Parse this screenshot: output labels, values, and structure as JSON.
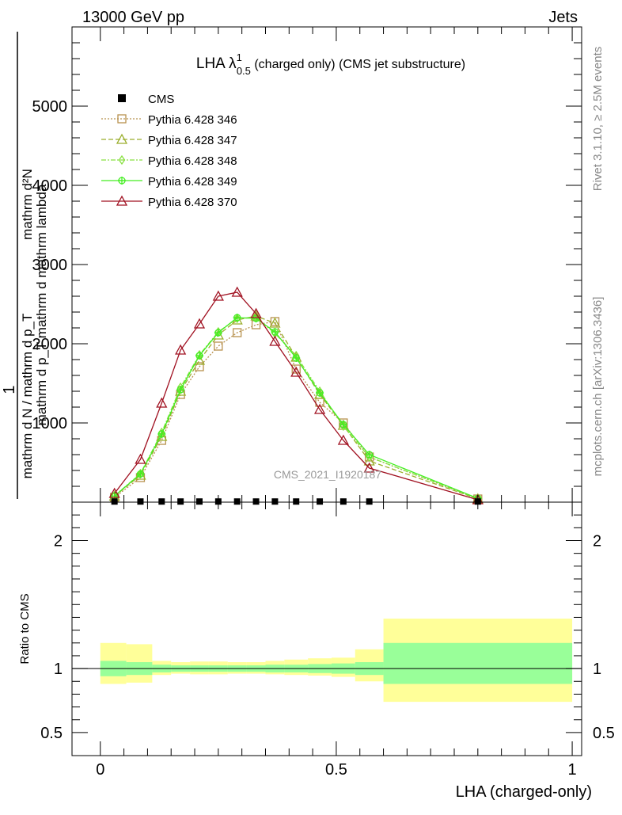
{
  "header": {
    "left": "13000 GeV pp",
    "right": "Jets"
  },
  "side_text": {
    "rivet": "Rivet 3.1.10, ≥ 2.5M events",
    "mcplots": "mcplots.cern.ch [arXiv:1306.3436]"
  },
  "chart_data": [
    {
      "type": "line",
      "title_main": "LHA λ",
      "title_sup": "1",
      "title_sub": "0.5",
      "title_rest": " (charged only) (CMS jet substructure)",
      "ylabel_top": "mathrm d²N",
      "ylabel_mid": "mathrm d p_T mathrm d mathrm lambda",
      "ylabel_one": "1",
      "ylabel_bottom": "mathrm d N / mathrm d p_T",
      "watermark": "CMS_2021_I1920187",
      "xlim": [
        -0.06,
        1.02
      ],
      "ylim": [
        0,
        6000
      ],
      "yticks": [
        {
          "v": 1000,
          "label": "1000"
        },
        {
          "v": 2000,
          "label": "2000"
        },
        {
          "v": 3000,
          "label": "3000"
        },
        {
          "v": 4000,
          "label": "4000"
        },
        {
          "v": 5000,
          "label": "5000"
        }
      ],
      "legend_position": "top-left",
      "legend": [
        {
          "name": "CMS",
          "color": "#000000",
          "marker": "square",
          "dash": ""
        },
        {
          "name": "Pythia 6.428 346",
          "color": "#b8924f",
          "marker": "open-square",
          "dash": "2,2"
        },
        {
          "name": "Pythia 6.428 347",
          "color": "#9aae2c",
          "marker": "open-triangle",
          "dash": "6,3"
        },
        {
          "name": "Pythia 6.428 348",
          "color": "#88e040",
          "marker": "open-diamond",
          "dash": "6,2,2,2"
        },
        {
          "name": "Pythia 6.428 349",
          "color": "#44ee22",
          "marker": "open-circle-cross",
          "dash": ""
        },
        {
          "name": "Pythia 6.428 370",
          "color": "#a01020",
          "marker": "open-triangle",
          "dash": ""
        }
      ],
      "cms_x": [
        0.03,
        0.085,
        0.13,
        0.17,
        0.21,
        0.25,
        0.29,
        0.33,
        0.37,
        0.415,
        0.465,
        0.515,
        0.57,
        0.8
      ],
      "cms_y": [
        8,
        8,
        8,
        8,
        8,
        8,
        8,
        8,
        8,
        8,
        8,
        8,
        8,
        8
      ],
      "series": [
        {
          "name": "Pythia 6.428 346",
          "x": [
            0.03,
            0.085,
            0.13,
            0.17,
            0.21,
            0.25,
            0.29,
            0.33,
            0.37,
            0.415,
            0.465,
            0.515,
            0.57,
            0.8
          ],
          "y": [
            60,
            310,
            780,
            1360,
            1710,
            1970,
            2140,
            2240,
            2280,
            1680,
            1260,
            1000,
            570,
            40
          ]
        },
        {
          "name": "Pythia 6.428 347",
          "x": [
            0.03,
            0.085,
            0.13,
            0.17,
            0.21,
            0.25,
            0.29,
            0.33,
            0.37,
            0.415,
            0.465,
            0.515,
            0.57,
            0.8
          ],
          "y": [
            75,
            340,
            830,
            1400,
            1790,
            2110,
            2300,
            2350,
            2260,
            1830,
            1360,
            970,
            520,
            42
          ]
        },
        {
          "name": "Pythia 6.428 348",
          "x": [
            0.03,
            0.085,
            0.13,
            0.17,
            0.21,
            0.25,
            0.29,
            0.33,
            0.37,
            0.415,
            0.465,
            0.515,
            0.57,
            0.8
          ],
          "y": [
            80,
            360,
            880,
            1450,
            1860,
            2150,
            2320,
            2330,
            2130,
            1850,
            1400,
            960,
            570,
            45
          ]
        },
        {
          "name": "Pythia 6.428 349",
          "x": [
            0.03,
            0.085,
            0.13,
            0.17,
            0.21,
            0.25,
            0.29,
            0.33,
            0.37,
            0.415,
            0.465,
            0.515,
            0.57,
            0.8
          ],
          "y": [
            78,
            355,
            860,
            1420,
            1850,
            2140,
            2330,
            2320,
            2150,
            1820,
            1380,
            980,
            600,
            48
          ]
        },
        {
          "name": "Pythia 6.428 370",
          "x": [
            0.03,
            0.085,
            0.13,
            0.17,
            0.21,
            0.25,
            0.29,
            0.33,
            0.37,
            0.415,
            0.465,
            0.515,
            0.57,
            0.8
          ],
          "y": [
            110,
            540,
            1250,
            1920,
            2250,
            2600,
            2650,
            2380,
            2030,
            1640,
            1170,
            780,
            430,
            30
          ]
        }
      ]
    },
    {
      "type": "area",
      "ylabel": "Ratio to CMS",
      "xlabel": "LHA (charged-only)",
      "xlim": [
        -0.06,
        1.02
      ],
      "ylim": [
        0.32,
        2.3
      ],
      "xticks": [
        {
          "v": 0,
          "label": "0"
        },
        {
          "v": 0.5,
          "label": "0.5"
        },
        {
          "v": 1,
          "label": "1"
        }
      ],
      "yticks": [
        {
          "v": 0.5,
          "label": "0.5"
        },
        {
          "v": 1,
          "label": "1"
        },
        {
          "v": 2,
          "label": "2"
        }
      ],
      "bands": [
        {
          "x0": 0.0,
          "x1": 0.055,
          "stat": [
            0.94,
            1.06
          ],
          "total": [
            0.88,
            1.2
          ]
        },
        {
          "x0": 0.055,
          "x1": 0.11,
          "stat": [
            0.95,
            1.05
          ],
          "total": [
            0.89,
            1.19
          ]
        },
        {
          "x0": 0.11,
          "x1": 0.15,
          "stat": [
            0.97,
            1.03
          ],
          "total": [
            0.95,
            1.06
          ]
        },
        {
          "x0": 0.15,
          "x1": 0.19,
          "stat": [
            0.975,
            1.025
          ],
          "total": [
            0.96,
            1.05
          ]
        },
        {
          "x0": 0.19,
          "x1": 0.23,
          "stat": [
            0.975,
            1.025
          ],
          "total": [
            0.955,
            1.055
          ]
        },
        {
          "x0": 0.23,
          "x1": 0.27,
          "stat": [
            0.975,
            1.025
          ],
          "total": [
            0.955,
            1.055
          ]
        },
        {
          "x0": 0.27,
          "x1": 0.31,
          "stat": [
            0.975,
            1.025
          ],
          "total": [
            0.96,
            1.05
          ]
        },
        {
          "x0": 0.31,
          "x1": 0.35,
          "stat": [
            0.975,
            1.025
          ],
          "total": [
            0.96,
            1.05
          ]
        },
        {
          "x0": 0.35,
          "x1": 0.39,
          "stat": [
            0.97,
            1.03
          ],
          "total": [
            0.955,
            1.06
          ]
        },
        {
          "x0": 0.39,
          "x1": 0.44,
          "stat": [
            0.97,
            1.03
          ],
          "total": [
            0.95,
            1.07
          ]
        },
        {
          "x0": 0.44,
          "x1": 0.49,
          "stat": [
            0.965,
            1.035
          ],
          "total": [
            0.945,
            1.08
          ]
        },
        {
          "x0": 0.49,
          "x1": 0.54,
          "stat": [
            0.96,
            1.04
          ],
          "total": [
            0.935,
            1.085
          ]
        },
        {
          "x0": 0.54,
          "x1": 0.6,
          "stat": [
            0.95,
            1.05
          ],
          "total": [
            0.9,
            1.15
          ]
        },
        {
          "x0": 0.6,
          "x1": 1.0,
          "stat": [
            0.88,
            1.2
          ],
          "total": [
            0.74,
            1.39
          ]
        }
      ]
    }
  ]
}
